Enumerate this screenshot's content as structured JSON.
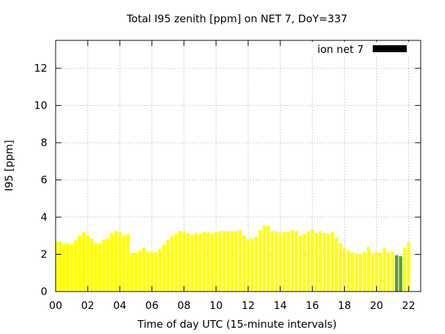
{
  "chart_data": {
    "type": "bar",
    "title": "Total I95 zenith [ppm] on NET 7, DoY=337",
    "xlabel": "Time of day UTC (15-minute intervals)",
    "ylabel": "I95 [ppm]",
    "xlim": [
      0,
      22.75
    ],
    "ylim": [
      0,
      13.5
    ],
    "xticks": [
      "00",
      "02",
      "04",
      "06",
      "08",
      "10",
      "12",
      "14",
      "16",
      "18",
      "20",
      "22"
    ],
    "xtick_values": [
      0,
      2,
      4,
      6,
      8,
      10,
      12,
      14,
      16,
      18,
      20,
      22
    ],
    "yticks": [
      "0",
      "2",
      "4",
      "6",
      "8",
      "10",
      "12"
    ],
    "ytick_values": [
      0,
      2,
      4,
      6,
      8,
      10,
      12
    ],
    "grid": true,
    "legend": {
      "label": "ion net 7",
      "swatch_color": "#000000",
      "position": "top-right"
    },
    "colors": {
      "high": "#ffff00",
      "low": "#5aa02c",
      "threshold": 2
    },
    "interval_hours": 0.25,
    "series": [
      {
        "values": [
          2.65,
          2.7,
          2.55,
          2.6,
          2.55,
          2.75,
          3.0,
          3.2,
          3.05,
          2.85,
          2.6,
          2.6,
          2.8,
          2.85,
          3.15,
          3.25,
          3.2,
          3.0,
          3.1,
          2.05,
          2.1,
          2.2,
          2.35,
          2.15,
          2.15,
          2.1,
          2.3,
          2.5,
          2.75,
          2.95,
          3.1,
          3.25,
          3.25,
          3.15,
          3.05,
          3.15,
          3.1,
          3.2,
          3.2,
          3.1,
          3.2,
          3.25,
          3.25,
          3.25,
          3.25,
          3.25,
          3.3,
          3.0,
          2.8,
          2.85,
          2.95,
          3.3,
          3.55,
          3.55,
          3.25,
          3.25,
          3.15,
          3.2,
          3.2,
          3.3,
          3.25,
          3.0,
          3.1,
          3.25,
          3.35,
          3.15,
          3.25,
          3.15,
          3.1,
          3.2,
          2.9,
          2.6,
          2.35,
          2.2,
          2.1,
          2.05,
          2.0,
          2.15,
          2.4,
          2.05,
          2.15,
          2.1,
          2.35,
          2.1,
          2.15,
          1.95,
          1.9,
          2.35,
          2.65
        ]
      }
    ]
  }
}
